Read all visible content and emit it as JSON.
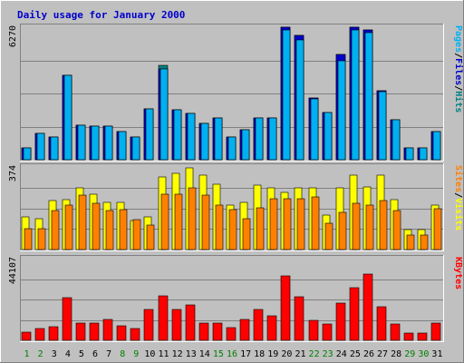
{
  "chart_data": {
    "type": "bar",
    "title": "Daily usage for January 2000",
    "colors": {
      "background": "#c0c0c0",
      "title": "#0000cc",
      "hits": "#008080",
      "files": "#0000cc",
      "pages": "#00b0f0",
      "visits": "#ffff00",
      "sites": "#ff8000",
      "kbytes": "#ff0000",
      "weekend_label": "#008000",
      "weekday_label": "#000000"
    },
    "categories": [
      "1",
      "2",
      "3",
      "4",
      "5",
      "6",
      "7",
      "8",
      "9",
      "10",
      "11",
      "12",
      "13",
      "14",
      "15",
      "16",
      "17",
      "18",
      "19",
      "20",
      "21",
      "22",
      "23",
      "24",
      "25",
      "26",
      "27",
      "28",
      "29",
      "30",
      "31"
    ],
    "weekend_days": [
      1,
      2,
      8,
      9,
      15,
      16,
      22,
      23,
      29,
      30
    ],
    "panels": [
      {
        "name": "hits-files-pages",
        "ymax": 6270,
        "ytick": "6270",
        "side_labels": [
          "Hits",
          "Files",
          "Pages"
        ],
        "series": [
          {
            "name": "Hits",
            "key": "hits",
            "values": [
              560,
              1260,
              1060,
              4010,
              1650,
              1580,
              1590,
              1350,
              1090,
              2420,
              4450,
              2380,
              2170,
              1700,
              1980,
              1080,
              1430,
              1980,
              1970,
              6260,
              5900,
              2910,
              2230,
              4970,
              6260,
              6120,
              3280,
              1880,
              560,
              560,
              1350
            ]
          },
          {
            "name": "Files",
            "key": "files",
            "values": [
              560,
              1260,
              1060,
              3980,
              1650,
              1580,
              1590,
              1350,
              1090,
              2420,
              4300,
              2380,
              2170,
              1700,
              1980,
              1080,
              1430,
              1980,
              1970,
              6260,
              5900,
              2910,
              2230,
              4970,
              6260,
              6120,
              3280,
              1880,
              560,
              560,
              1350
            ]
          },
          {
            "name": "Pages",
            "key": "pages",
            "values": [
              560,
              1260,
              1060,
              3980,
              1650,
              1580,
              1590,
              1350,
              1090,
              2420,
              4300,
              2380,
              2170,
              1700,
              1980,
              1080,
              1430,
              1980,
              1970,
              6150,
              5650,
              2860,
              2230,
              4700,
              6150,
              6020,
              3230,
              1880,
              560,
              560,
              1320
            ]
          }
        ]
      },
      {
        "name": "visits-sites",
        "ymax": 374,
        "ytick": "374",
        "side_labels": [
          "Visits",
          "Sites"
        ],
        "series": [
          {
            "name": "Visits",
            "key": "visits",
            "values": [
              150,
              140,
              220,
              225,
              280,
              250,
              215,
              215,
              130,
              150,
              330,
              345,
              370,
              335,
              295,
              200,
              215,
              290,
              280,
              260,
              280,
              280,
              155,
              280,
              335,
              285,
              335,
              225,
              90,
              90,
              200
            ]
          },
          {
            "name": "Sites",
            "key": "sites",
            "values": [
              95,
              95,
              175,
              200,
              245,
              210,
              175,
              180,
              135,
              110,
              250,
              250,
              280,
              245,
              200,
              180,
              140,
              190,
              230,
              230,
              230,
              240,
              120,
              170,
              210,
              200,
              220,
              175,
              65,
              65,
              185
            ]
          }
        ]
      },
      {
        "name": "kbytes",
        "ymax": 44107,
        "ytick": "44107",
        "side_labels": [
          "KBytes"
        ],
        "series": [
          {
            "name": "KBytes",
            "key": "kbytes",
            "values": [
              4500,
              6500,
              7500,
              23000,
              9500,
              9500,
              11500,
              8000,
              6500,
              16700,
              24200,
              16700,
              19300,
              9200,
              9200,
              6800,
              11500,
              16700,
              13000,
              34800,
              23500,
              11000,
              9000,
              20200,
              28500,
              36000,
              18000,
              9000,
              3800,
              3800,
              9500
            ]
          }
        ]
      }
    ]
  }
}
